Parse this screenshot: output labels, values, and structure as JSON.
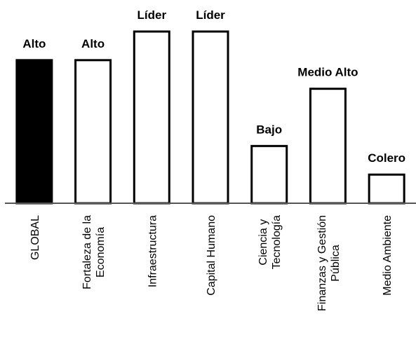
{
  "chart_data": {
    "type": "bar",
    "categories": [
      [
        "GLOBAL"
      ],
      [
        "Fortaleza de la",
        "Economía"
      ],
      [
        "Infraestructura"
      ],
      [
        "Capital Humano"
      ],
      [
        "Ciencia y",
        "Tecnología"
      ],
      [
        "Finanzas y Gestión",
        "Pública"
      ],
      [
        "Medio Ambiente"
      ]
    ],
    "values": [
      5,
      5,
      6,
      6,
      2,
      4,
      1
    ],
    "value_labels": [
      "Alto",
      "Alto",
      "Líder",
      "Líder",
      "Bajo",
      "Medio Alto",
      "Colero"
    ],
    "colors": [
      "#000000",
      "#ffffff",
      "#ffffff",
      "#ffffff",
      "#ffffff",
      "#ffffff",
      "#ffffff"
    ],
    "ylim": [
      0,
      6
    ]
  }
}
